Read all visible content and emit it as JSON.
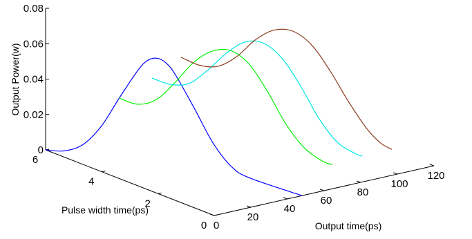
{
  "chart_data": {
    "type": "line",
    "projection": "3d",
    "title": "",
    "xlabel": "Output time(ps)",
    "ylabel": "Pulse width time(ps)",
    "zlabel": "Output Power(w)",
    "xlim": [
      0,
      120
    ],
    "ylim": [
      0,
      6
    ],
    "zlim": [
      0,
      0.08
    ],
    "x_ticks": [
      "0",
      "20",
      "40",
      "60",
      "80",
      "100",
      "120"
    ],
    "y_ticks": [
      "0",
      "2",
      "4",
      "6"
    ],
    "z_ticks": [
      "0",
      "0.02",
      "0.04",
      "0.06",
      "0.08"
    ],
    "grid": false,
    "series": [
      {
        "color": "#0000ff",
        "points": [
          {
            "t": 0,
            "w": 6.0,
            "p": 0.0
          },
          {
            "t": 4,
            "w": 5.6,
            "p": 0.001
          },
          {
            "t": 8,
            "w": 5.2,
            "p": 0.006
          },
          {
            "t": 12,
            "w": 4.8,
            "p": 0.018
          },
          {
            "t": 16,
            "w": 4.4,
            "p": 0.036
          },
          {
            "t": 20,
            "w": 4.0,
            "p": 0.053
          },
          {
            "t": 22,
            "w": 3.8,
            "p": 0.059
          },
          {
            "t": 24,
            "w": 3.6,
            "p": 0.061
          },
          {
            "t": 26,
            "w": 3.4,
            "p": 0.059
          },
          {
            "t": 28,
            "w": 3.2,
            "p": 0.053
          },
          {
            "t": 32,
            "w": 2.8,
            "p": 0.036
          },
          {
            "t": 36,
            "w": 2.4,
            "p": 0.018
          },
          {
            "t": 40,
            "w": 2.0,
            "p": 0.006
          },
          {
            "t": 44,
            "w": 1.6,
            "p": 0.001
          },
          {
            "t": 48,
            "w": 0.0,
            "p": 0.0
          }
        ]
      },
      {
        "color": "#00ee00",
        "points": [
          {
            "t": 40,
            "w": 6.0,
            "p": 0.02
          },
          {
            "t": 44,
            "w": 5.6,
            "p": 0.018
          },
          {
            "t": 48,
            "w": 5.2,
            "p": 0.022
          },
          {
            "t": 52,
            "w": 4.8,
            "p": 0.033
          },
          {
            "t": 56,
            "w": 4.4,
            "p": 0.046
          },
          {
            "t": 60,
            "w": 4.0,
            "p": 0.054
          },
          {
            "t": 64,
            "w": 3.6,
            "p": 0.056
          },
          {
            "t": 68,
            "w": 3.2,
            "p": 0.05
          },
          {
            "t": 72,
            "w": 2.8,
            "p": 0.036
          },
          {
            "t": 76,
            "w": 2.4,
            "p": 0.019
          },
          {
            "t": 80,
            "w": 2.0,
            "p": 0.007
          },
          {
            "t": 84,
            "w": 1.6,
            "p": 0.001
          },
          {
            "t": 86,
            "w": 1.4,
            "p": 0.0
          }
        ]
      },
      {
        "color": "#00e5e5",
        "points": [
          {
            "t": 58,
            "w": 6.0,
            "p": 0.027
          },
          {
            "t": 62,
            "w": 5.6,
            "p": 0.025
          },
          {
            "t": 66,
            "w": 5.2,
            "p": 0.027
          },
          {
            "t": 70,
            "w": 4.8,
            "p": 0.036
          },
          {
            "t": 74,
            "w": 4.4,
            "p": 0.047
          },
          {
            "t": 78,
            "w": 4.0,
            "p": 0.055
          },
          {
            "t": 82,
            "w": 3.6,
            "p": 0.056
          },
          {
            "t": 86,
            "w": 3.2,
            "p": 0.049
          },
          {
            "t": 90,
            "w": 2.8,
            "p": 0.035
          },
          {
            "t": 94,
            "w": 2.4,
            "p": 0.018
          },
          {
            "t": 98,
            "w": 2.0,
            "p": 0.006
          },
          {
            "t": 102,
            "w": 1.6,
            "p": 0.001
          },
          {
            "t": 104,
            "w": 1.5,
            "p": 0.0
          }
        ]
      },
      {
        "color": "#8b3a1a",
        "points": [
          {
            "t": 74,
            "w": 6.0,
            "p": 0.035
          },
          {
            "t": 78,
            "w": 5.6,
            "p": 0.032
          },
          {
            "t": 82,
            "w": 5.2,
            "p": 0.033
          },
          {
            "t": 86,
            "w": 4.8,
            "p": 0.04
          },
          {
            "t": 90,
            "w": 4.4,
            "p": 0.051
          },
          {
            "t": 94,
            "w": 4.0,
            "p": 0.058
          },
          {
            "t": 98,
            "w": 3.6,
            "p": 0.059
          },
          {
            "t": 102,
            "w": 3.2,
            "p": 0.053
          },
          {
            "t": 106,
            "w": 2.8,
            "p": 0.04
          },
          {
            "t": 110,
            "w": 2.4,
            "p": 0.024
          },
          {
            "t": 114,
            "w": 2.0,
            "p": 0.01
          },
          {
            "t": 117,
            "w": 1.7,
            "p": 0.003
          },
          {
            "t": 120,
            "w": 1.5,
            "p": 0.0
          }
        ]
      }
    ]
  }
}
